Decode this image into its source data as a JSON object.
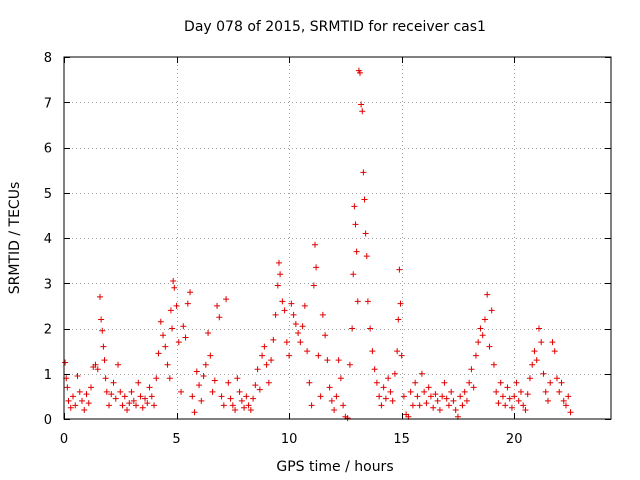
{
  "chart_data": {
    "type": "scatter",
    "title": "Day 078 of 2015, SRMTID for receiver cas1",
    "xlabel": "GPS time / hours",
    "ylabel": "SRMTID / TECUs",
    "xlim": [
      0,
      24.3
    ],
    "ylim": [
      0,
      8
    ],
    "xticks": [
      0,
      5,
      10,
      15,
      20
    ],
    "yticks": [
      0,
      1,
      2,
      3,
      4,
      5,
      6,
      7,
      8
    ],
    "grid": true,
    "marker": "+",
    "color": "#e00000",
    "series": [
      {
        "name": "SRMTID",
        "points": [
          [
            0.05,
            1.25
          ],
          [
            0.1,
            0.9
          ],
          [
            0.15,
            0.7
          ],
          [
            0.2,
            0.4
          ],
          [
            0.3,
            0.25
          ],
          [
            0.4,
            0.5
          ],
          [
            0.5,
            0.3
          ],
          [
            0.6,
            0.95
          ],
          [
            0.7,
            0.6
          ],
          [
            0.8,
            0.4
          ],
          [
            0.9,
            0.2
          ],
          [
            1.0,
            0.55
          ],
          [
            1.1,
            0.35
          ],
          [
            1.2,
            0.7
          ],
          [
            1.3,
            1.15
          ],
          [
            1.4,
            1.2
          ],
          [
            1.5,
            1.1
          ],
          [
            1.6,
            2.7
          ],
          [
            1.65,
            2.2
          ],
          [
            1.7,
            1.95
          ],
          [
            1.75,
            1.6
          ],
          [
            1.8,
            1.3
          ],
          [
            1.85,
            0.9
          ],
          [
            1.9,
            0.6
          ],
          [
            2.0,
            0.3
          ],
          [
            2.1,
            0.55
          ],
          [
            2.2,
            0.8
          ],
          [
            2.3,
            0.45
          ],
          [
            2.4,
            1.2
          ],
          [
            2.5,
            0.6
          ],
          [
            2.6,
            0.3
          ],
          [
            2.7,
            0.5
          ],
          [
            2.8,
            0.2
          ],
          [
            2.9,
            0.35
          ],
          [
            3.0,
            0.6
          ],
          [
            3.1,
            0.4
          ],
          [
            3.2,
            0.3
          ],
          [
            3.3,
            0.8
          ],
          [
            3.4,
            0.5
          ],
          [
            3.5,
            0.25
          ],
          [
            3.6,
            0.45
          ],
          [
            3.7,
            0.35
          ],
          [
            3.8,
            0.7
          ],
          [
            3.9,
            0.5
          ],
          [
            4.0,
            0.3
          ],
          [
            4.1,
            0.9
          ],
          [
            4.2,
            1.45
          ],
          [
            4.3,
            2.15
          ],
          [
            4.4,
            1.85
          ],
          [
            4.5,
            1.6
          ],
          [
            4.6,
            1.2
          ],
          [
            4.7,
            0.9
          ],
          [
            4.75,
            2.4
          ],
          [
            4.8,
            2.0
          ],
          [
            4.85,
            3.05
          ],
          [
            4.9,
            2.9
          ],
          [
            5.0,
            2.5
          ],
          [
            5.1,
            1.7
          ],
          [
            5.2,
            0.6
          ],
          [
            5.3,
            2.05
          ],
          [
            5.4,
            1.8
          ],
          [
            5.5,
            2.55
          ],
          [
            5.6,
            2.8
          ],
          [
            5.7,
            0.5
          ],
          [
            5.8,
            0.15
          ],
          [
            5.9,
            1.05
          ],
          [
            6.0,
            0.75
          ],
          [
            6.1,
            0.4
          ],
          [
            6.2,
            0.95
          ],
          [
            6.3,
            1.2
          ],
          [
            6.4,
            1.9
          ],
          [
            6.5,
            1.4
          ],
          [
            6.6,
            0.6
          ],
          [
            6.7,
            0.85
          ],
          [
            6.8,
            2.5
          ],
          [
            6.9,
            2.25
          ],
          [
            7.0,
            0.5
          ],
          [
            7.1,
            0.3
          ],
          [
            7.2,
            2.65
          ],
          [
            7.3,
            0.8
          ],
          [
            7.4,
            0.45
          ],
          [
            7.5,
            0.3
          ],
          [
            7.6,
            0.2
          ],
          [
            7.7,
            0.9
          ],
          [
            7.8,
            0.6
          ],
          [
            7.9,
            0.4
          ],
          [
            8.0,
            0.25
          ],
          [
            8.1,
            0.5
          ],
          [
            8.2,
            0.3
          ],
          [
            8.3,
            0.2
          ],
          [
            8.4,
            0.45
          ],
          [
            8.5,
            0.75
          ],
          [
            8.6,
            1.1
          ],
          [
            8.7,
            0.65
          ],
          [
            8.8,
            1.4
          ],
          [
            8.9,
            1.6
          ],
          [
            9.0,
            1.2
          ],
          [
            9.1,
            0.8
          ],
          [
            9.2,
            1.3
          ],
          [
            9.3,
            1.75
          ],
          [
            9.4,
            2.3
          ],
          [
            9.5,
            2.95
          ],
          [
            9.55,
            3.45
          ],
          [
            9.6,
            3.2
          ],
          [
            9.7,
            2.6
          ],
          [
            9.8,
            2.4
          ],
          [
            9.9,
            1.7
          ],
          [
            10.0,
            1.4
          ],
          [
            10.1,
            2.55
          ],
          [
            10.2,
            2.3
          ],
          [
            10.3,
            2.1
          ],
          [
            10.4,
            1.9
          ],
          [
            10.5,
            1.7
          ],
          [
            10.6,
            2.05
          ],
          [
            10.7,
            2.5
          ],
          [
            10.8,
            1.5
          ],
          [
            10.9,
            0.8
          ],
          [
            11.0,
            0.3
          ],
          [
            11.1,
            2.95
          ],
          [
            11.15,
            3.85
          ],
          [
            11.2,
            3.35
          ],
          [
            11.3,
            1.4
          ],
          [
            11.4,
            0.5
          ],
          [
            11.5,
            2.3
          ],
          [
            11.6,
            1.85
          ],
          [
            11.7,
            1.3
          ],
          [
            11.8,
            0.7
          ],
          [
            11.9,
            0.4
          ],
          [
            12.0,
            0.2
          ],
          [
            12.1,
            0.5
          ],
          [
            12.2,
            1.3
          ],
          [
            12.3,
            0.9
          ],
          [
            12.4,
            0.3
          ],
          [
            12.5,
            0.05
          ],
          [
            12.6,
            0.02
          ],
          [
            12.7,
            1.2
          ],
          [
            12.8,
            2.0
          ],
          [
            12.85,
            3.2
          ],
          [
            12.9,
            4.7
          ],
          [
            12.95,
            4.3
          ],
          [
            13.0,
            3.7
          ],
          [
            13.05,
            2.6
          ],
          [
            13.1,
            7.7
          ],
          [
            13.15,
            7.65
          ],
          [
            13.2,
            6.95
          ],
          [
            13.25,
            6.8
          ],
          [
            13.3,
            5.45
          ],
          [
            13.35,
            4.85
          ],
          [
            13.4,
            4.1
          ],
          [
            13.45,
            3.6
          ],
          [
            13.5,
            2.6
          ],
          [
            13.6,
            2.0
          ],
          [
            13.7,
            1.5
          ],
          [
            13.8,
            1.1
          ],
          [
            13.9,
            0.8
          ],
          [
            14.0,
            0.5
          ],
          [
            14.1,
            0.3
          ],
          [
            14.2,
            0.7
          ],
          [
            14.3,
            0.45
          ],
          [
            14.4,
            0.9
          ],
          [
            14.5,
            0.6
          ],
          [
            14.6,
            0.4
          ],
          [
            14.7,
            1.0
          ],
          [
            14.8,
            1.5
          ],
          [
            14.85,
            2.2
          ],
          [
            14.9,
            3.3
          ],
          [
            14.95,
            2.55
          ],
          [
            15.0,
            1.4
          ],
          [
            15.1,
            0.5
          ],
          [
            15.2,
            0.1
          ],
          [
            15.3,
            0.05
          ],
          [
            15.4,
            0.6
          ],
          [
            15.5,
            0.3
          ],
          [
            15.6,
            0.8
          ],
          [
            15.7,
            0.5
          ],
          [
            15.8,
            0.3
          ],
          [
            15.9,
            1.0
          ],
          [
            16.0,
            0.6
          ],
          [
            16.1,
            0.35
          ],
          [
            16.2,
            0.7
          ],
          [
            16.3,
            0.5
          ],
          [
            16.4,
            0.25
          ],
          [
            16.5,
            0.55
          ],
          [
            16.6,
            0.4
          ],
          [
            16.7,
            0.2
          ],
          [
            16.8,
            0.5
          ],
          [
            16.9,
            0.8
          ],
          [
            17.0,
            0.45
          ],
          [
            17.1,
            0.3
          ],
          [
            17.2,
            0.6
          ],
          [
            17.3,
            0.4
          ],
          [
            17.4,
            0.2
          ],
          [
            17.5,
            0.05
          ],
          [
            17.6,
            0.5
          ],
          [
            17.7,
            0.3
          ],
          [
            17.8,
            0.6
          ],
          [
            17.9,
            0.4
          ],
          [
            18.0,
            0.8
          ],
          [
            18.1,
            1.1
          ],
          [
            18.2,
            0.7
          ],
          [
            18.3,
            1.4
          ],
          [
            18.4,
            1.7
          ],
          [
            18.5,
            2.0
          ],
          [
            18.6,
            1.85
          ],
          [
            18.7,
            2.2
          ],
          [
            18.8,
            2.75
          ],
          [
            18.9,
            1.6
          ],
          [
            19.0,
            2.4
          ],
          [
            19.1,
            1.2
          ],
          [
            19.2,
            0.6
          ],
          [
            19.3,
            0.35
          ],
          [
            19.4,
            0.8
          ],
          [
            19.5,
            0.5
          ],
          [
            19.6,
            0.3
          ],
          [
            19.7,
            0.7
          ],
          [
            19.8,
            0.45
          ],
          [
            19.9,
            0.25
          ],
          [
            20.0,
            0.5
          ],
          [
            20.1,
            0.8
          ],
          [
            20.2,
            0.4
          ],
          [
            20.3,
            0.6
          ],
          [
            20.4,
            0.3
          ],
          [
            20.5,
            0.2
          ],
          [
            20.6,
            0.55
          ],
          [
            20.7,
            0.9
          ],
          [
            20.8,
            1.2
          ],
          [
            20.9,
            1.5
          ],
          [
            21.0,
            1.3
          ],
          [
            21.1,
            2.0
          ],
          [
            21.2,
            1.7
          ],
          [
            21.3,
            1.0
          ],
          [
            21.4,
            0.6
          ],
          [
            21.5,
            0.4
          ],
          [
            21.6,
            0.8
          ],
          [
            21.7,
            1.7
          ],
          [
            21.8,
            1.5
          ],
          [
            21.9,
            0.9
          ],
          [
            22.0,
            0.6
          ],
          [
            22.1,
            0.8
          ],
          [
            22.2,
            0.4
          ],
          [
            22.3,
            0.3
          ],
          [
            22.4,
            0.5
          ],
          [
            22.5,
            0.15
          ]
        ]
      }
    ]
  }
}
